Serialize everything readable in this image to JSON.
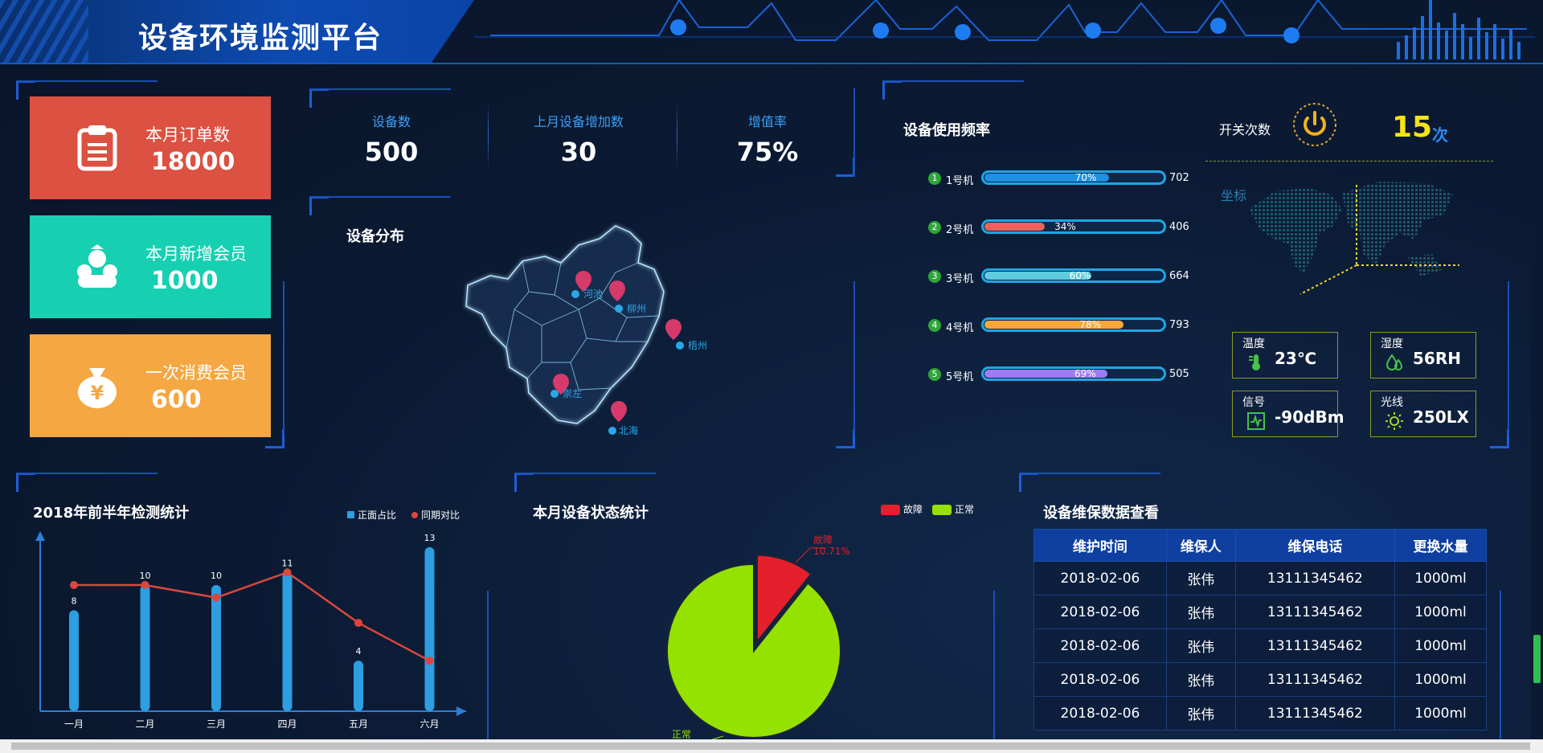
{
  "header": {
    "title": "设备环境监测平台"
  },
  "stats": [
    {
      "label": "本月订单数",
      "value": "18000",
      "color": "#dc5141",
      "icon": "clipboard-icon"
    },
    {
      "label": "本月新增会员",
      "value": "1000",
      "color": "#17d0b2",
      "icon": "members-icon"
    },
    {
      "label": "一次消费会员",
      "value": "600",
      "color": "#f4a742",
      "icon": "money-bag-icon"
    }
  ],
  "kpis": [
    {
      "label": "设备数",
      "value": "500"
    },
    {
      "label": "上月设备增加数",
      "value": "30"
    },
    {
      "label": "增值率",
      "value": "75%"
    }
  ],
  "distribution": {
    "title": "设备分布",
    "places": [
      "河池",
      "柳州",
      "梧州",
      "崇左",
      "北海"
    ]
  },
  "usage": {
    "title": "设备使用频率",
    "rows": [
      {
        "num": "1",
        "name": "1号机",
        "percent": 70,
        "label": "70%",
        "count": "702",
        "color": "#1f8fe0"
      },
      {
        "num": "2",
        "name": "2号机",
        "percent": 34,
        "label": "34%",
        "count": "406",
        "color": "#f0615c"
      },
      {
        "num": "3",
        "name": "3号机",
        "percent": 60,
        "label": "60%",
        "count": "664",
        "color": "#5fcbe0"
      },
      {
        "num": "4",
        "name": "4号机",
        "percent": 78,
        "label": "78%",
        "count": "793",
        "color": "#f7a73a"
      },
      {
        "num": "5",
        "name": "5号机",
        "percent": 69,
        "label": "69%",
        "count": "505",
        "color": "#9b7cf2"
      }
    ]
  },
  "switch": {
    "label": "开关次数",
    "value": "15",
    "unit": "次"
  },
  "coords_label": "坐标",
  "sensors": [
    {
      "label": "温度",
      "value": "23℃",
      "icon": "thermometer-icon"
    },
    {
      "label": "湿度",
      "value": "56RH",
      "icon": "humidity-icon"
    },
    {
      "label": "信号",
      "value": "-90dBm",
      "icon": "signal-icon"
    },
    {
      "label": "光线",
      "value": "250LX",
      "icon": "sun-icon"
    }
  ],
  "detect_chart": {
    "title": "2018年前半年检测统计",
    "legend": [
      "正面占比",
      "同期对比"
    ]
  },
  "status_chart": {
    "title": "本月设备状态统计",
    "legend": [
      "故障",
      "正常"
    ],
    "fault_label": "故障",
    "fault_pct": "10.71%",
    "normal_label": "正常"
  },
  "maintenance": {
    "title": "设备维保数据查看",
    "headers": [
      "维护时间",
      "维保人",
      "维保电话",
      "更换水量"
    ],
    "rows": [
      [
        "2018-02-06",
        "张伟",
        "13111345462",
        "1000ml"
      ],
      [
        "2018-02-06",
        "张伟",
        "13111345462",
        "1000ml"
      ],
      [
        "2018-02-06",
        "张伟",
        "13111345462",
        "1000ml"
      ],
      [
        "2018-02-06",
        "张伟",
        "13111345462",
        "1000ml"
      ],
      [
        "2018-02-06",
        "张伟",
        "13111345462",
        "1000ml"
      ]
    ]
  },
  "chart_data": [
    {
      "type": "bar",
      "title": "2018年前半年检测统计",
      "categories": [
        "一月",
        "二月",
        "三月",
        "四月",
        "五月",
        "六月"
      ],
      "series": [
        {
          "name": "正面占比",
          "type": "bar",
          "values": [
            8,
            10,
            10,
            11,
            4,
            13
          ],
          "color": "#2d9ee0"
        },
        {
          "name": "同期对比",
          "type": "line",
          "values": [
            10,
            10,
            9,
            11,
            7,
            4
          ],
          "color": "#d9473e"
        }
      ],
      "ylim": [
        0,
        13.5
      ],
      "legend_position": "top-right"
    },
    {
      "type": "pie",
      "title": "本月设备状态统计",
      "labels": [
        "故障",
        "正常"
      ],
      "values": [
        10.71,
        89.29
      ],
      "colors": [
        "#e3202b",
        "#95e100"
      ],
      "legend_position": "top-right"
    }
  ]
}
